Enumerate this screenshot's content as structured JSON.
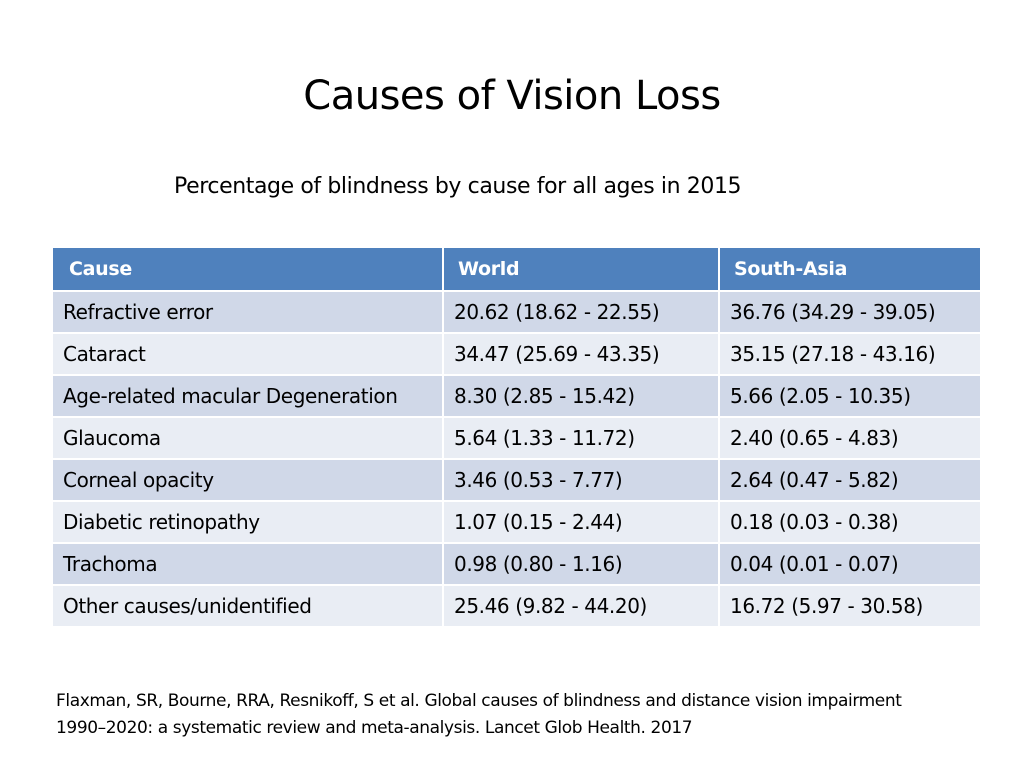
{
  "slide": {
    "title": "Causes of Vision Loss",
    "subtitle": "Percentage of blindness by cause for all ages in 2015"
  },
  "table": {
    "headers": [
      "Cause",
      "World",
      "South-Asia"
    ],
    "rows": [
      [
        "Refractive error",
        "20.62 (18.62 - 22.55)",
        "36.76 (34.29 - 39.05)"
      ],
      [
        "Cataract",
        "34.47 (25.69 - 43.35)",
        "35.15 (27.18 - 43.16)"
      ],
      [
        "Age-related macular Degeneration",
        "8.30 (2.85 - 15.42)",
        "5.66 (2.05 - 10.35)"
      ],
      [
        "Glaucoma",
        "5.64 (1.33 - 11.72)",
        "2.40 (0.65 - 4.83)"
      ],
      [
        "Corneal opacity",
        "3.46 (0.53 - 7.77)",
        "2.64 (0.47 - 5.82)"
      ],
      [
        "Diabetic retinopathy",
        "1.07 (0.15 - 2.44)",
        "0.18 (0.03 - 0.38)"
      ],
      [
        "Trachoma",
        "0.98 (0.80 - 1.16)",
        "0.04 (0.01 - 0.07)"
      ],
      [
        "Other causes/unidentified",
        "25.46 (9.82 - 44.20)",
        "16.72 (5.97 - 30.58)"
      ]
    ]
  },
  "citation": {
    "line1": "Flaxman, SR, Bourne, RRA, Resnikoff, S et al. Global causes of blindness and distance vision impairment",
    "line2": "1990–2020: a systematic review and meta-analysis. Lancet Glob Health. 2017"
  },
  "colors": {
    "header_bg": "#4f81bd",
    "row_band_dark": "#d0d8e8",
    "row_band_light": "#e9edf4"
  }
}
